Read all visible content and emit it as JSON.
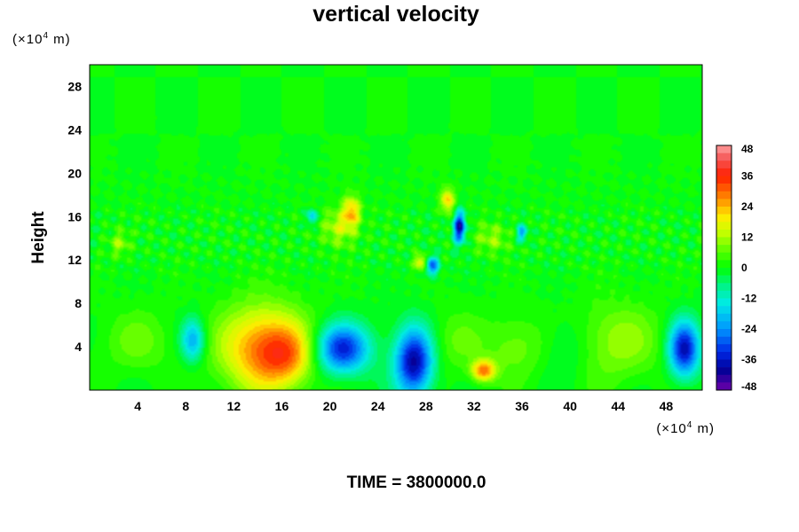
{
  "chart_data": {
    "type": "heatmap",
    "title": "vertical velocity",
    "ylabel": "Height",
    "y_unit": {
      "prefix": "(×10",
      "exp": "4",
      "suffix": " m)"
    },
    "x_unit": {
      "prefix": "(×10",
      "exp": "4",
      "suffix": " m)"
    },
    "xlim": [
      0,
      51
    ],
    "ylim": [
      0,
      30
    ],
    "x_ticks": [
      "4",
      "8",
      "12",
      "16",
      "20",
      "24",
      "28",
      "32",
      "36",
      "40",
      "44",
      "48"
    ],
    "y_ticks": [
      "4",
      "8",
      "12",
      "16",
      "20",
      "24",
      "28"
    ],
    "colorbar": {
      "ticks": [
        "48",
        "36",
        "24",
        "12",
        "0",
        "-12",
        "-24",
        "-36",
        "-48"
      ],
      "range": [
        -48,
        48
      ],
      "levels": 32
    },
    "features": [
      {
        "x": 14.5,
        "y": 3.8,
        "value": 28,
        "sx": 2.6,
        "sy": 2.8
      },
      {
        "x": 16.5,
        "y": 3.2,
        "value": 14,
        "sx": 1.6,
        "sy": 1.8
      },
      {
        "x": 21.0,
        "y": 3.8,
        "value": -35,
        "sx": 1.6,
        "sy": 1.6
      },
      {
        "x": 27.0,
        "y": 2.6,
        "value": -40,
        "sx": 1.1,
        "sy": 2.2
      },
      {
        "x": 49.5,
        "y": 3.8,
        "value": -38,
        "sx": 0.9,
        "sy": 1.8
      },
      {
        "x": 8.6,
        "y": 4.6,
        "value": -22,
        "sx": 0.7,
        "sy": 1.4
      },
      {
        "x": 32.8,
        "y": 1.8,
        "value": 28,
        "sx": 0.7,
        "sy": 0.7
      },
      {
        "x": 44.0,
        "y": 4.5,
        "value": 11,
        "sx": 2.5,
        "sy": 2.5
      },
      {
        "x": 4.0,
        "y": 4.5,
        "value": 7,
        "sx": 2.0,
        "sy": 2.0
      },
      {
        "x": 35.5,
        "y": 4.0,
        "value": 8,
        "sx": 2.0,
        "sy": 2.0
      },
      {
        "x": 39.5,
        "y": 4.0,
        "value": -6,
        "sx": 1.5,
        "sy": 2.0
      },
      {
        "x": 30.5,
        "y": 4.5,
        "value": 6,
        "sx": 1.5,
        "sy": 2.0
      },
      {
        "x": 30.8,
        "y": 15.0,
        "value": -40,
        "sx": 0.35,
        "sy": 1.0
      },
      {
        "x": 28.5,
        "y": 11.5,
        "value": -30,
        "sx": 0.4,
        "sy": 0.6
      },
      {
        "x": 21.8,
        "y": 16.5,
        "value": 22,
        "sx": 0.5,
        "sy": 1.0
      },
      {
        "x": 29.8,
        "y": 17.5,
        "value": 22,
        "sx": 0.4,
        "sy": 0.8
      },
      {
        "x": 36.0,
        "y": 14.5,
        "value": -22,
        "sx": 0.3,
        "sy": 0.5
      },
      {
        "x": 18.5,
        "y": 16.0,
        "value": -18,
        "sx": 0.3,
        "sy": 0.5
      },
      {
        "x": 27.6,
        "y": 11.8,
        "value": 20,
        "sx": 0.4,
        "sy": 0.5
      },
      {
        "x": 20.8,
        "y": 15.0,
        "value": 14,
        "sx": 1.0,
        "sy": 1.2
      },
      {
        "x": 2.5,
        "y": 13.5,
        "value": 10,
        "sx": 0.6,
        "sy": 0.8
      },
      {
        "x": 33.5,
        "y": 14.0,
        "value": 10,
        "sx": 1.0,
        "sy": 1.0
      }
    ]
  },
  "footer": {
    "label": "TIME = 3800000.0"
  }
}
